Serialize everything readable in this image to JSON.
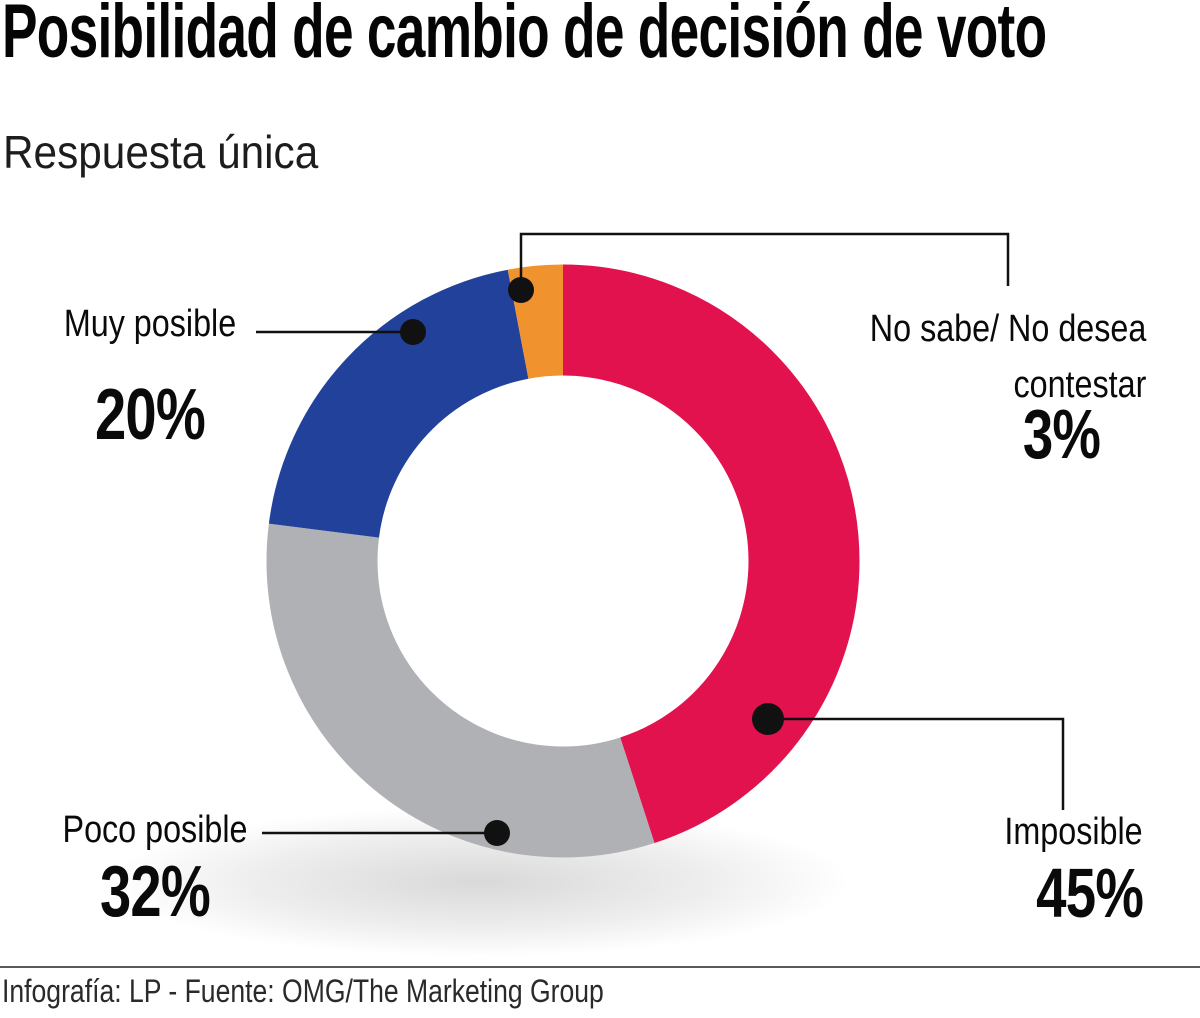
{
  "header": {
    "title": "Posibilidad de cambio de decisión de voto",
    "subtitle": "Respuesta única"
  },
  "chart_data": {
    "type": "pie",
    "subtype": "donut",
    "title": "Posibilidad de cambio de decisión de voto",
    "subtitle": "Respuesta única",
    "start_angle_deg": -90,
    "direction": "clockwise",
    "unit": "%",
    "segments": [
      {
        "id": "imposible",
        "label": "Imposible",
        "value": 45,
        "display": "45%",
        "color": "#E2124E"
      },
      {
        "id": "poco-posible",
        "label": "Poco posible",
        "value": 32,
        "display": "32%",
        "color": "#AFB1B4"
      },
      {
        "id": "muy-posible",
        "label": "Muy posible",
        "value": 20,
        "display": "20%",
        "color": "#22419A"
      },
      {
        "id": "no-sabe",
        "label": "No sabe/ No desea contestar",
        "value": 3,
        "display": "3%",
        "color": "#F0922D"
      }
    ],
    "legend_position": "callouts",
    "callout_color": "#111111"
  },
  "callouts": {
    "muy_posible": {
      "label": "Muy posible",
      "value": "20%"
    },
    "poco_posible": {
      "label": "Poco posible",
      "value": "32%"
    },
    "imposible": {
      "label": "Imposible",
      "value": "45%"
    },
    "no_sabe": {
      "line1": "No sabe/ No desea",
      "line2": "contestar",
      "value": "3%"
    }
  },
  "footer": {
    "credit": "Infografía: LP - Fuente: OMG/The Marketing Group"
  }
}
